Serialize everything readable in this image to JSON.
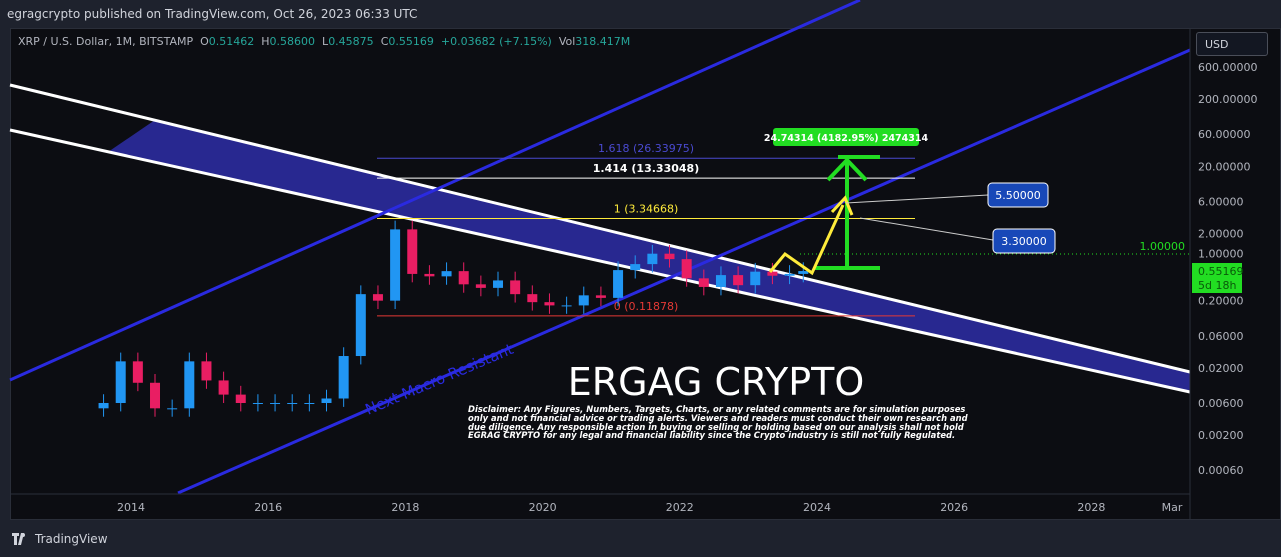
{
  "header": {
    "published": "egragcrypto published on TradingView.com, Oct 26, 2023 06:33 UTC"
  },
  "legend": {
    "symbol": "XRP / U.S. Dollar, 1M, BITSTAMP",
    "o_label": "O",
    "o": "0.51462",
    "h_label": "H",
    "h": "0.58600",
    "l_label": "L",
    "l": "0.45875",
    "c_label": "C",
    "c": "0.55169",
    "change": "+0.03682 (+7.15%)",
    "vol_label": "Vol",
    "vol": "318.417M"
  },
  "currency_button": "USD",
  "footer": {
    "brand": "TradingView"
  },
  "colors": {
    "up": "#26a69a",
    "down": "#ef5350",
    "candle_up": "#2196f3",
    "candle_down": "#e91e63",
    "band": "#2b2b9e",
    "channel": "#2a2ae0",
    "target": "#22dd22",
    "projection": "#ffeb3b"
  },
  "annotations": {
    "watermark": "ERGAG CRYPTO",
    "disclaimer": "Disclaimer: Any Figures, Numbers, Targets, Charts, or any related comments are for simulation purposes only and not financial advice or trading alerts. Viewers and readers must conduct their own research and due diligence. Any responsible action in buying or selling or holding based on our analysis shall not hold EGRAG CRYPTO for any legal and financial liability since the Crypto industry is still not fully Regulated.",
    "channel_label": "Next Macro Resistant",
    "target_label": "24.74314 (4182.95%) 2474314",
    "callout_1": "5.50000",
    "callout_2": "3.30000",
    "price_badge": {
      "level": "1.00000",
      "price": "0.55169",
      "countdown": "5d 18h"
    }
  },
  "chart_data": {
    "type": "candlestick",
    "scale": "log",
    "ylim": [
      0.0004,
      1000
    ],
    "y_ticks": [
      "600.00000",
      "200.00000",
      "60.00000",
      "20.00000",
      "6.00000",
      "2.00000",
      "1.00000",
      "0.20000",
      "0.06000",
      "0.02000",
      "0.00600",
      "0.00200",
      "0.00060"
    ],
    "y_tick_values": [
      600,
      200,
      60,
      20,
      6,
      2,
      1,
      0.2,
      0.06,
      0.02,
      0.006,
      0.002,
      0.0006
    ],
    "x_ticks": [
      "2014",
      "2016",
      "2018",
      "2020",
      "2022",
      "2024",
      "2026",
      "2028",
      "Mar"
    ],
    "x_tick_values": [
      2014,
      2016,
      2018,
      2020,
      2022,
      2024,
      2026,
      2028,
      2029.2
    ],
    "quarterly_closes": {
      "x": [
        2013.6,
        2013.85,
        2014.1,
        2014.35,
        2014.6,
        2014.85,
        2015.1,
        2015.35,
        2015.6,
        2015.85,
        2016.1,
        2016.35,
        2016.6,
        2016.85,
        2017.1,
        2017.35,
        2017.6,
        2017.85,
        2018.1,
        2018.35,
        2018.6,
        2018.85,
        2019.1,
        2019.35,
        2019.6,
        2019.85,
        2020.1,
        2020.35,
        2020.6,
        2020.85,
        2021.1,
        2021.35,
        2021.6,
        2021.85,
        2022.1,
        2022.35,
        2022.6,
        2022.85,
        2023.1,
        2023.35,
        2023.6,
        2023.8
      ],
      "close": [
        0.006,
        0.025,
        0.012,
        0.005,
        0.005,
        0.025,
        0.013,
        0.008,
        0.006,
        0.006,
        0.006,
        0.006,
        0.006,
        0.007,
        0.03,
        0.25,
        0.2,
        2.3,
        0.5,
        0.46,
        0.55,
        0.35,
        0.31,
        0.4,
        0.25,
        0.19,
        0.17,
        0.17,
        0.24,
        0.22,
        0.57,
        0.7,
        1.0,
        0.83,
        0.43,
        0.32,
        0.48,
        0.34,
        0.54,
        0.47,
        0.5,
        0.55169
      ]
    },
    "fib_levels": [
      {
        "label": "1.618 (26.33975)",
        "value": 26.33975,
        "color": "#4a4ad0"
      },
      {
        "label": "1.414 (13.33048)",
        "value": 13.33048,
        "color": "#ffffff"
      },
      {
        "label": "1 (3.34668)",
        "value": 3.34668,
        "color": "#ffeb3b"
      },
      {
        "label": "0 (0.11878)",
        "value": 0.11878,
        "color": "#e53935"
      }
    ]
  }
}
